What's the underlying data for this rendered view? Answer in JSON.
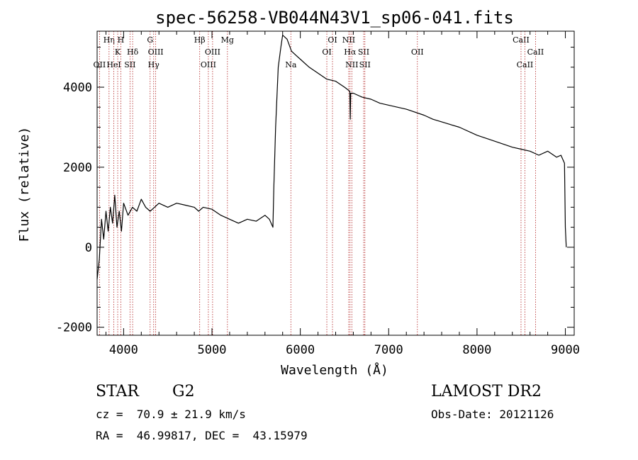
{
  "chart_data": {
    "type": "line",
    "title": "spec-56258-VB044N43V1_sp06-041.fits",
    "xlabel": "Wavelength (Å)",
    "ylabel": "Flux (relative)",
    "xlim": [
      3700,
      9100
    ],
    "ylim": [
      -2200,
      5400
    ],
    "xticks": [
      4000,
      5000,
      6000,
      7000,
      8000,
      9000
    ],
    "yticks": [
      -2000,
      0,
      2000,
      4000
    ],
    "grid": false,
    "line_color": "#000000",
    "marker_color": "#b22222",
    "series": [
      {
        "x": [
          3700,
          3725,
          3750,
          3775,
          3800,
          3825,
          3850,
          3875,
          3900,
          3925,
          3950,
          3975,
          4000,
          4050,
          4100,
          4150,
          4200,
          4250,
          4300,
          4350,
          4400,
          4500,
          4600,
          4700,
          4800,
          4850,
          4900,
          5000,
          5100,
          5200,
          5300,
          5400,
          5500,
          5600,
          5650,
          5690,
          5700,
          5720,
          5750,
          5780,
          5800,
          5850,
          5900,
          5950,
          6000,
          6100,
          6200,
          6300,
          6400,
          6500,
          6560,
          6565,
          6570,
          6600,
          6700,
          6800,
          6900,
          7000,
          7200,
          7400,
          7500,
          7800,
          8000,
          8200,
          8400,
          8500,
          8600,
          8700,
          8800,
          8900,
          8950,
          8990,
          9000,
          9010
        ],
        "values": [
          -800,
          -300,
          700,
          200,
          900,
          400,
          1000,
          600,
          1300,
          500,
          900,
          400,
          1100,
          800,
          1000,
          900,
          1200,
          1000,
          900,
          1000,
          1100,
          1000,
          1100,
          1050,
          1000,
          900,
          1000,
          950,
          800,
          700,
          600,
          700,
          650,
          800,
          700,
          500,
          1500,
          3000,
          4500,
          5000,
          5300,
          5200,
          4900,
          4800,
          4700,
          4500,
          4350,
          4200,
          4150,
          4000,
          3900,
          3200,
          3850,
          3850,
          3750,
          3700,
          3600,
          3550,
          3450,
          3300,
          3200,
          3000,
          2800,
          2650,
          2500,
          2450,
          2400,
          2300,
          2400,
          2250,
          2300,
          2100,
          500,
          0
        ]
      }
    ],
    "markers": [
      {
        "wavelength": 3727,
        "label": "OII",
        "row": 3
      },
      {
        "wavelength": 3835,
        "label": "Hη",
        "row": 1
      },
      {
        "wavelength": 3889,
        "label": "HeI",
        "row": 3
      },
      {
        "wavelength": 3933,
        "label": "K",
        "row": 2
      },
      {
        "wavelength": 3968,
        "label": "H",
        "row": 1
      },
      {
        "wavelength": 4072,
        "label": "SII",
        "row": 3
      },
      {
        "wavelength": 4102,
        "label": "Hδ",
        "row": 2
      },
      {
        "wavelength": 4300,
        "label": "G",
        "row": 1
      },
      {
        "wavelength": 4340,
        "label": "Hγ",
        "row": 3
      },
      {
        "wavelength": 4363,
        "label": "OIII",
        "row": 2
      },
      {
        "wavelength": 4861,
        "label": "Hβ",
        "row": 1
      },
      {
        "wavelength": 4959,
        "label": "OIII",
        "row": 3
      },
      {
        "wavelength": 5007,
        "label": "OIII",
        "row": 2
      },
      {
        "wavelength": 5175,
        "label": "Mg",
        "row": 1
      },
      {
        "wavelength": 5893,
        "label": "Na",
        "row": 3
      },
      {
        "wavelength": 6300,
        "label": "OI",
        "row": 2
      },
      {
        "wavelength": 6364,
        "label": "OI",
        "row": 1
      },
      {
        "wavelength": 6548,
        "label": "NII",
        "row": 1
      },
      {
        "wavelength": 6563,
        "label": "Hα",
        "row": 2
      },
      {
        "wavelength": 6583,
        "label": "NII",
        "row": 3
      },
      {
        "wavelength": 6717,
        "label": "SII",
        "row": 2
      },
      {
        "wavelength": 6731,
        "label": "SII",
        "row": 3
      },
      {
        "wavelength": 7325,
        "label": "OII",
        "row": 2
      },
      {
        "wavelength": 8498,
        "label": "CaII",
        "row": 1
      },
      {
        "wavelength": 8542,
        "label": "CaII",
        "row": 3
      },
      {
        "wavelength": 8662,
        "label": "CaII",
        "row": 2
      }
    ]
  },
  "info": {
    "object_class": "STAR",
    "subclass": "G2",
    "survey": "LAMOST DR2",
    "redshift_line": "cz =  70.9 ± 21.9 km/s",
    "obs_date_line": "Obs-Date: 20121126",
    "coords_line": "RA =  46.99817, DEC =  43.15979"
  }
}
